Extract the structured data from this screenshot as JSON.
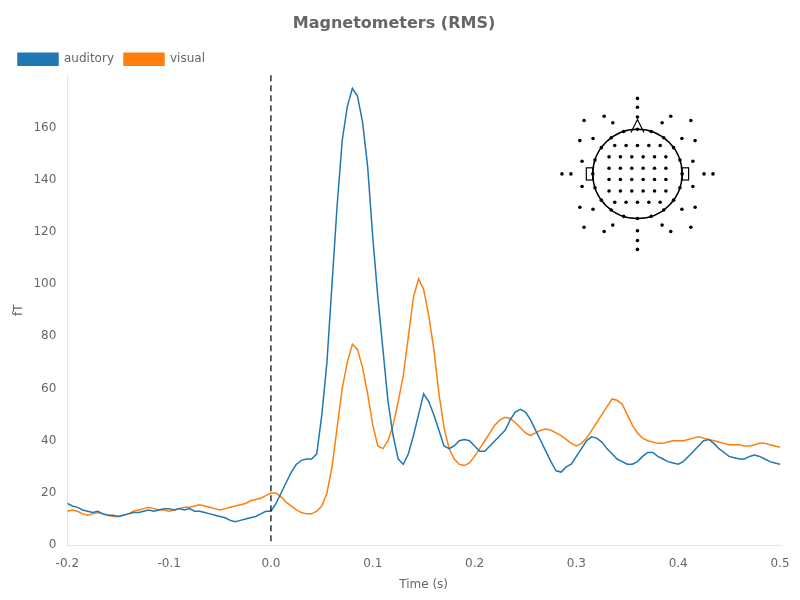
{
  "chart_data": {
    "type": "line",
    "title": "Magnetometers (RMS)",
    "x_label": "Time (s)",
    "y_label": "fT",
    "x": [
      -0.2,
      -0.195,
      -0.19,
      -0.185,
      -0.18,
      -0.175,
      -0.17,
      -0.165,
      -0.16,
      -0.155,
      -0.15,
      -0.145,
      -0.14,
      -0.135,
      -0.13,
      -0.125,
      -0.12,
      -0.115,
      -0.11,
      -0.105,
      -0.1,
      -0.095,
      -0.09,
      -0.085,
      -0.08,
      -0.075,
      -0.07,
      -0.065,
      -0.06,
      -0.055,
      -0.05,
      -0.045,
      -0.04,
      -0.035,
      -0.03,
      -0.025,
      -0.02,
      -0.015,
      -0.01,
      -0.005,
      0.0,
      0.005,
      0.01,
      0.015,
      0.02,
      0.025,
      0.03,
      0.035,
      0.04,
      0.045,
      0.05,
      0.055,
      0.06,
      0.065,
      0.07,
      0.075,
      0.08,
      0.085,
      0.09,
      0.095,
      0.1,
      0.105,
      0.11,
      0.115,
      0.12,
      0.125,
      0.13,
      0.135,
      0.14,
      0.145,
      0.15,
      0.155,
      0.16,
      0.165,
      0.17,
      0.175,
      0.18,
      0.185,
      0.19,
      0.195,
      0.2,
      0.205,
      0.21,
      0.215,
      0.22,
      0.225,
      0.23,
      0.235,
      0.24,
      0.245,
      0.25,
      0.255,
      0.26,
      0.265,
      0.27,
      0.275,
      0.28,
      0.285,
      0.29,
      0.295,
      0.3,
      0.305,
      0.31,
      0.315,
      0.32,
      0.325,
      0.33,
      0.335,
      0.34,
      0.345,
      0.35,
      0.355,
      0.36,
      0.365,
      0.37,
      0.375,
      0.38,
      0.385,
      0.39,
      0.395,
      0.4,
      0.405,
      0.41,
      0.415,
      0.42,
      0.425,
      0.43,
      0.435,
      0.44,
      0.445,
      0.45,
      0.455,
      0.46,
      0.465,
      0.47,
      0.475,
      0.48,
      0.485,
      0.49,
      0.495,
      0.5
    ],
    "series": [
      {
        "name": "auditory",
        "color": "#1f77b4",
        "values": [
          16.0,
          15.0,
          14.5,
          13.5,
          13.0,
          12.5,
          13.0,
          12.0,
          11.5,
          11.5,
          11.0,
          11.5,
          12.0,
          12.5,
          12.5,
          13.0,
          13.5,
          13.0,
          13.5,
          14.0,
          14.0,
          13.5,
          14.0,
          13.5,
          14.0,
          13.0,
          13.0,
          12.5,
          12.0,
          11.5,
          11.0,
          10.5,
          9.5,
          9.0,
          9.5,
          10.0,
          10.5,
          11.0,
          12.0,
          13.0,
          13.0,
          16.0,
          20.0,
          24.0,
          28.0,
          31.0,
          32.5,
          33.0,
          33.0,
          35.0,
          50.0,
          70.0,
          100.0,
          130.0,
          155.0,
          168.0,
          175.0,
          172.0,
          162.0,
          145.0,
          118.0,
          95.0,
          75.0,
          55.0,
          42.0,
          33.0,
          31.0,
          35.0,
          42.0,
          50.0,
          58.0,
          55.0,
          50.0,
          44.0,
          38.0,
          37.0,
          38.0,
          40.0,
          40.5,
          40.0,
          38.0,
          36.0,
          36.0,
          38.0,
          40.0,
          42.0,
          44.0,
          48.0,
          51.0,
          52.0,
          51.0,
          48.0,
          44.0,
          40.0,
          36.0,
          32.0,
          28.5,
          28.0,
          30.0,
          31.0,
          34.0,
          37.0,
          40.0,
          41.5,
          41.0,
          39.5,
          37.0,
          35.0,
          33.0,
          32.0,
          31.0,
          31.0,
          32.0,
          34.0,
          35.5,
          35.5,
          34.0,
          33.0,
          32.0,
          31.5,
          31.0,
          32.0,
          34.0,
          36.0,
          38.0,
          40.0,
          40.5,
          39.0,
          37.0,
          35.5,
          34.0,
          33.5,
          33.0,
          33.0,
          34.0,
          34.5,
          34.0,
          33.0,
          32.0,
          31.5,
          31.0
        ]
      },
      {
        "name": "visual",
        "color": "#ff7f0e",
        "values": [
          13.0,
          13.5,
          13.0,
          12.0,
          11.5,
          12.0,
          12.5,
          12.0,
          11.5,
          11.0,
          11.0,
          11.5,
          12.0,
          13.0,
          13.5,
          14.0,
          14.5,
          14.0,
          13.5,
          13.5,
          13.0,
          13.5,
          14.0,
          14.5,
          14.5,
          15.0,
          15.5,
          15.0,
          14.5,
          14.0,
          13.5,
          14.0,
          14.5,
          15.0,
          15.5,
          16.0,
          17.0,
          17.5,
          18.0,
          19.0,
          20.0,
          20.0,
          18.5,
          16.5,
          15.0,
          13.5,
          12.5,
          12.0,
          12.0,
          13.0,
          15.0,
          20.0,
          30.0,
          45.0,
          60.0,
          70.0,
          77.0,
          75.0,
          68.0,
          58.0,
          46.0,
          38.0,
          37.0,
          40.0,
          46.0,
          55.0,
          65.0,
          80.0,
          95.0,
          102.0,
          98.0,
          88.0,
          75.0,
          58.0,
          45.0,
          37.0,
          33.0,
          31.0,
          30.5,
          31.5,
          34.0,
          37.0,
          40.0,
          43.0,
          46.0,
          48.0,
          49.0,
          48.5,
          47.0,
          45.0,
          43.0,
          42.0,
          43.0,
          44.0,
          44.5,
          44.0,
          43.0,
          42.0,
          40.5,
          39.0,
          38.0,
          39.0,
          41.0,
          44.0,
          47.0,
          50.0,
          53.0,
          56.0,
          55.5,
          54.0,
          50.0,
          46.0,
          43.0,
          41.0,
          40.0,
          39.5,
          39.0,
          39.0,
          39.5,
          40.0,
          40.0,
          40.0,
          40.5,
          41.0,
          41.5,
          41.0,
          40.5,
          40.0,
          39.5,
          39.0,
          38.5,
          38.5,
          38.5,
          38.0,
          38.0,
          38.5,
          39.0,
          39.0,
          38.5,
          38.0,
          37.5
        ]
      }
    ],
    "vline": {
      "x": 0.0,
      "color": "black",
      "line_style": "dashed"
    },
    "xlim": [
      -0.2,
      0.5
    ],
    "xticks": [
      -0.2,
      -0.1,
      {
        "value": 0.0,
        "label": "0.0"
      },
      0.1,
      0.2,
      0.3,
      0.4,
      0.5
    ],
    "ylim": [
      0,
      180
    ],
    "yticks": [
      0,
      20,
      40,
      60,
      80,
      100,
      120,
      140,
      160
    ],
    "legend": "upper left",
    "grid": false
  }
}
